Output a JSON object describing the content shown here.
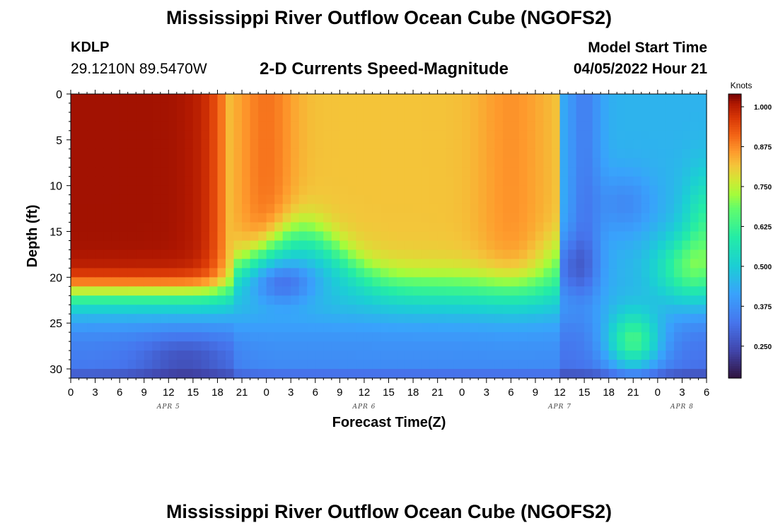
{
  "title": "Mississippi River Outflow Ocean Cube (NGOFS2)",
  "station": {
    "id": "KDLP",
    "coords": "29.1210N  89.5470W"
  },
  "model": {
    "label": "Model Start Time",
    "time": "04/05/2022 Hour 21"
  },
  "chart_data": {
    "type": "heatmap",
    "title": "2-D Currents Speed-Magnitude",
    "xlabel": "Forecast Time(Z)",
    "ylabel": "Depth (ft)",
    "x_tick_labels": [
      "0",
      "3",
      "6",
      "9",
      "12",
      "15",
      "18",
      "21",
      "0",
      "3",
      "6",
      "9",
      "12",
      "15",
      "18",
      "21",
      "0",
      "3",
      "6",
      "9",
      "12",
      "15",
      "18",
      "21",
      "0",
      "3",
      "6"
    ],
    "x_range_hours": [
      0,
      78
    ],
    "date_labels": [
      {
        "label": "APR 5",
        "hour": 12
      },
      {
        "label": "APR 6",
        "hour": 36
      },
      {
        "label": "APR 7",
        "hour": 60
      },
      {
        "label": "APR 8",
        "hour": 75
      }
    ],
    "y_ticks": [
      0,
      5,
      10,
      15,
      20,
      25,
      30
    ],
    "ylim": [
      31,
      0
    ],
    "colorbar": {
      "title": "Knots",
      "ticks": [
        "1.000",
        "0.875",
        "0.750",
        "0.625",
        "0.500",
        "0.375",
        "0.250"
      ],
      "range": [
        0.15,
        1.04
      ]
    },
    "value_regions": [
      {
        "hours": [
          0,
          20
        ],
        "depth_ft": [
          0,
          21
        ],
        "speed_kn": 1.0
      },
      {
        "hours": [
          24,
          60
        ],
        "depth_ft": [
          0,
          18
        ],
        "speed_kn": 0.82
      },
      {
        "hours": [
          62,
          78
        ],
        "depth_ft": [
          0,
          22
        ],
        "speed_kn": 0.45
      },
      {
        "hours": [
          22,
          28
        ],
        "depth_ft": [
          19,
          22
        ],
        "speed_kn": 0.38
      },
      {
        "hours": [
          66,
          76
        ],
        "depth_ft": [
          24,
          30
        ],
        "speed_kn": 0.73
      },
      {
        "hours": [
          0,
          20
        ],
        "depth_ft": [
          25,
          31
        ],
        "speed_kn": 0.25
      }
    ]
  },
  "bottom_title": "Mississippi River Outflow Ocean Cube (NGOFS2)",
  "colors": {
    "plot_border": "#000000"
  }
}
